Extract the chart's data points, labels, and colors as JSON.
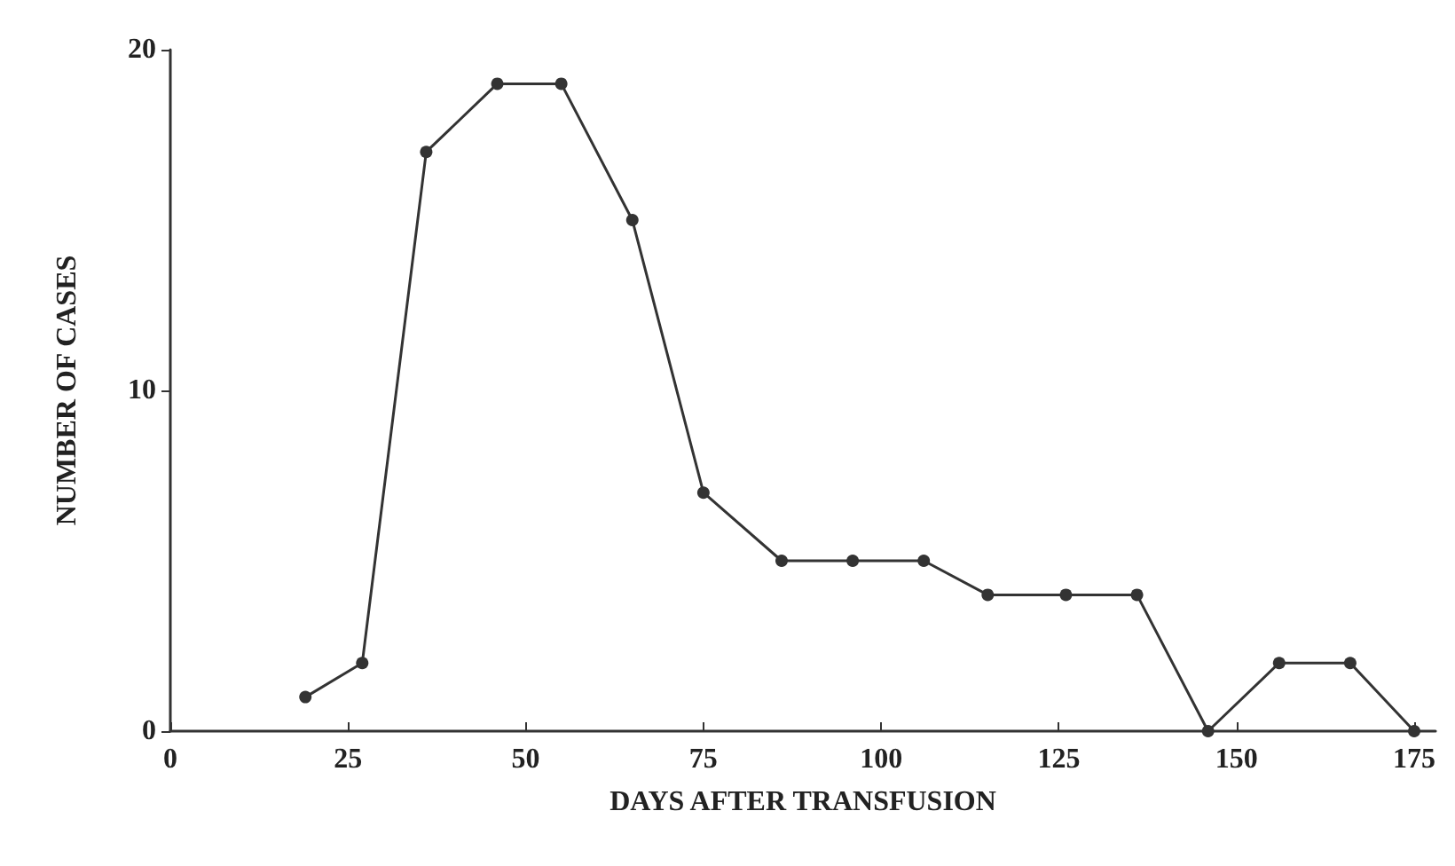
{
  "chart_data": {
    "type": "line",
    "xlabel": "DAYS AFTER TRANSFUSION",
    "ylabel": "NUMBER OF CASES",
    "x": [
      19,
      27,
      36,
      46,
      55,
      65,
      75,
      86,
      96,
      106,
      115,
      126,
      136,
      146,
      156,
      166,
      175
    ],
    "values": [
      1,
      2,
      17,
      19,
      19,
      15,
      7,
      5,
      5,
      5,
      4,
      4,
      4,
      0,
      2,
      2,
      0
    ],
    "color": "#333333",
    "marker": "circle",
    "line_style": "solid",
    "xlim": [
      0,
      178
    ],
    "xticks": [
      0,
      25,
      50,
      75,
      100,
      125,
      150,
      175
    ],
    "ylim": [
      0,
      20
    ],
    "yticks": [
      0,
      10,
      20
    ]
  }
}
